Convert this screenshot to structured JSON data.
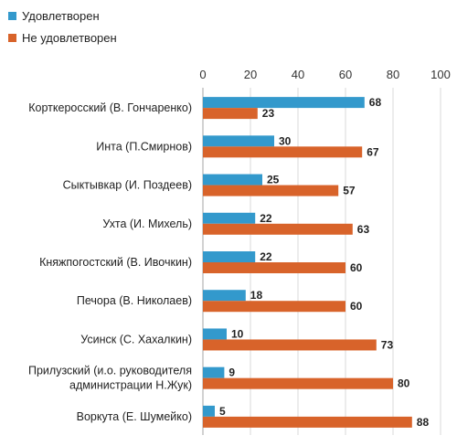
{
  "chart_data": {
    "type": "bar",
    "orientation": "horizontal",
    "categories": [
      [
        "Корткеросский (В. Гончаренко)"
      ],
      [
        "Инта (П.Смирнов)"
      ],
      [
        "Сыктывкар (И. Поздеев)"
      ],
      [
        "Ухта (И. Михель)"
      ],
      [
        "Княжпогостский (В. Ивочкин)"
      ],
      [
        "Печора (В. Николаев)"
      ],
      [
        "Усинск (С. Хахалкин)"
      ],
      [
        "Прилузский (и.о. руководителя",
        "администрации Н.Жук)"
      ],
      [
        "Воркута (Е. Шумейко)"
      ]
    ],
    "series": [
      {
        "name": "Удовлетворен",
        "color": "#3399cc",
        "values": [
          68,
          30,
          25,
          22,
          22,
          18,
          10,
          9,
          5
        ]
      },
      {
        "name": "Не удовлетворен",
        "color": "#d8632a",
        "values": [
          23,
          67,
          57,
          63,
          60,
          60,
          73,
          80,
          88
        ]
      }
    ],
    "xlim": [
      0,
      100
    ],
    "ticks": [
      0,
      20,
      40,
      60,
      80,
      100
    ],
    "axis_position": "top",
    "grid": true,
    "legend_position": "top-left",
    "data_labels": true
  }
}
